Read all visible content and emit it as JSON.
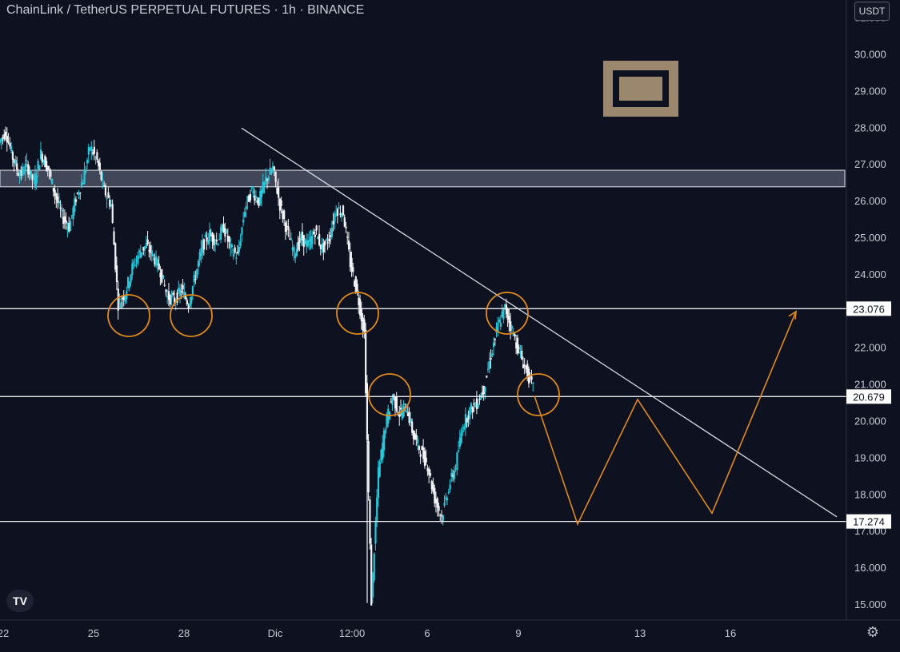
{
  "header": {
    "symbol": "ChainLink / TetherUS PERPETUAL FUTURES",
    "separator1": " · ",
    "interval": "1h",
    "separator2": " · ",
    "exchange": "BINANCE"
  },
  "currency_button": "USDT",
  "chart_data": {
    "type": "candlestick",
    "y_ticks": [
      "15.000",
      "16.000",
      "17.000",
      "18.000",
      "19.000",
      "20.000",
      "21.000",
      "22.000",
      "23.000",
      "24.000",
      "25.000",
      "26.000",
      "27.000",
      "28.000",
      "29.000",
      "30.000",
      "31.000"
    ],
    "x_ticks": [
      "22",
      "25",
      "28",
      "Dic",
      "12:00",
      "6",
      "9",
      "13",
      "16"
    ],
    "ylim": [
      14.8,
      31.3
    ],
    "price_labels": [
      {
        "value": 23.076,
        "text": "23.076"
      },
      {
        "value": 20.679,
        "text": "20.679"
      },
      {
        "value": 17.274,
        "text": "17.274"
      }
    ],
    "resistance_zone": [
      26.4,
      26.85
    ],
    "trendline": {
      "from_price": 28.0,
      "to_price": 17.4
    },
    "price_path": [
      27.6,
      27.9,
      27.2,
      26.7,
      27.0,
      26.5,
      27.3,
      26.9,
      26.2,
      25.6,
      25.3,
      26.1,
      26.6,
      27.5,
      27.1,
      26.3,
      25.9,
      23.2,
      23.5,
      24.2,
      24.6,
      24.8,
      24.5,
      24.1,
      23.4,
      23.3,
      23.6,
      23.2,
      24.0,
      24.8,
      25.1,
      24.9,
      25.3,
      24.7,
      24.5,
      25.8,
      26.3,
      26.0,
      26.6,
      26.9,
      25.9,
      25.2,
      24.6,
      25.0,
      24.8,
      25.2,
      24.7,
      25.0,
      25.8,
      25.7,
      24.3,
      23.5,
      22.4,
      15.1,
      18.6,
      19.9,
      20.7,
      20.2,
      20.4,
      19.6,
      19.2,
      18.8,
      17.9,
      17.4,
      18.2,
      18.8,
      19.9,
      20.3,
      20.5,
      20.9,
      21.8,
      22.6,
      23.1,
      22.5,
      21.9,
      21.4,
      20.9
    ],
    "projection_path": [
      20.7,
      17.2,
      20.6,
      17.5,
      23.0
    ]
  }
}
